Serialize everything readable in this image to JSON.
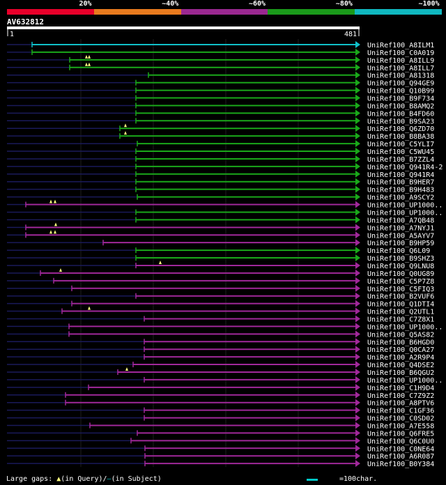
{
  "query_id": "AV632812",
  "scale": {
    "start": "1",
    "end": "481",
    "length": 481
  },
  "legend": [
    {
      "label": "20%",
      "color": "#e8002a"
    },
    {
      "label": "~40%",
      "color": "#e87a1e"
    },
    {
      "label": "~60%",
      "color": "#9a2890"
    },
    {
      "label": "~80%",
      "color": "#1a9a1a"
    },
    {
      "label": "~100%",
      "color": "#10b8c0"
    }
  ],
  "colors": {
    "cyan": "#10c0c8",
    "green": "#1aa81a",
    "purple": "#a0289a",
    "navy": "#1a1a5a",
    "grid": "#1e1e1e",
    "tri": "#ffff80"
  },
  "footer": {
    "gaps": "Large gaps:",
    "in_query": "(in Query)/",
    "dash": "—",
    "in_subject": "(in Subject)",
    "scale_note": "=100char."
  },
  "hits": [
    {
      "name": "UniRef100_A8ILM1",
      "s": 46,
      "c": "cyan",
      "tri": []
    },
    {
      "name": "UniRef100_C0A019",
      "s": 46,
      "c": "green",
      "tri": []
    },
    {
      "name": "UniRef100_A8ILL9",
      "s": 100,
      "c": "green",
      "tri": [
        124,
        128
      ]
    },
    {
      "name": "UniRef100_A8ILL7",
      "s": 100,
      "c": "green",
      "tri": [
        124,
        128
      ]
    },
    {
      "name": "UniRef100_A81318",
      "s": 213,
      "c": "green",
      "tri": []
    },
    {
      "name": "UniRef100_Q94GE9",
      "s": 195,
      "c": "green",
      "tri": []
    },
    {
      "name": "UniRef100_Q10B99",
      "s": 195,
      "c": "green",
      "tri": []
    },
    {
      "name": "UniRef100_B9F734",
      "s": 195,
      "c": "green",
      "tri": []
    },
    {
      "name": "UniRef100_B8AMQ2",
      "s": 195,
      "c": "green",
      "tri": []
    },
    {
      "name": "UniRef100_B4FD60",
      "s": 195,
      "c": "green",
      "tri": []
    },
    {
      "name": "UniRef100_B9SA23",
      "s": 195,
      "c": "green",
      "tri": []
    },
    {
      "name": "UniRef100_Q6ZD70",
      "s": 172,
      "c": "green",
      "tri": [
        180
      ]
    },
    {
      "name": "UniRef100_B8BA38",
      "s": 172,
      "c": "green",
      "tri": [
        180
      ]
    },
    {
      "name": "UniRef100_C5YLI7",
      "s": 197,
      "c": "green",
      "tri": []
    },
    {
      "name": "UniRef100_C5WU45",
      "s": 195,
      "c": "green",
      "tri": []
    },
    {
      "name": "UniRef100_B7ZZL4",
      "s": 195,
      "c": "green",
      "tri": []
    },
    {
      "name": "UniRef100_Q941R4-2",
      "s": 195,
      "c": "green",
      "tri": []
    },
    {
      "name": "UniRef100_Q941R4",
      "s": 195,
      "c": "green",
      "tri": []
    },
    {
      "name": "UniRef100_B9HER7",
      "s": 195,
      "c": "green",
      "tri": []
    },
    {
      "name": "UniRef100_B9H483",
      "s": 195,
      "c": "green",
      "tri": []
    },
    {
      "name": "UniRef100_A9SCY2",
      "s": 197,
      "c": "green",
      "tri": []
    },
    {
      "name": "UniRef100_UP1000..",
      "s": 37,
      "c": "purple",
      "tri": [
        73,
        79
      ]
    },
    {
      "name": "UniRef100_UP1000..",
      "s": 195,
      "c": "green",
      "tri": []
    },
    {
      "name": "UniRef100_A7QB48",
      "s": 195,
      "c": "green",
      "tri": []
    },
    {
      "name": "UniRef100_A7NYJ1",
      "s": 37,
      "c": "purple",
      "tri": [
        80
      ]
    },
    {
      "name": "UniRef100_A5AYV7",
      "s": 37,
      "c": "purple",
      "tri": [
        73,
        79
      ]
    },
    {
      "name": "UniRef100_B9HP59",
      "s": 148,
      "c": "purple",
      "tri": []
    },
    {
      "name": "UniRef100_Q6L09",
      "s": 195,
      "c": "green",
      "tri": []
    },
    {
      "name": "UniRef100_B9SHZ3",
      "s": 195,
      "c": "green",
      "tri": []
    },
    {
      "name": "UniRef100_Q9LNU8",
      "s": 195,
      "c": "purple",
      "tri": [
        230
      ]
    },
    {
      "name": "UniRef100_Q0UG89",
      "s": 58,
      "c": "purple",
      "tri": [
        87
      ]
    },
    {
      "name": "UniRef100_C5P7Z8",
      "s": 77,
      "c": "purple",
      "tri": []
    },
    {
      "name": "UniRef100_C5FIQ3",
      "s": 103,
      "c": "purple",
      "tri": []
    },
    {
      "name": "UniRef100_B2VUF6",
      "s": 195,
      "c": "purple",
      "tri": []
    },
    {
      "name": "UniRef100_Q1DTI4",
      "s": 103,
      "c": "purple",
      "tri": []
    },
    {
      "name": "UniRef100_Q2UTL1",
      "s": 89,
      "c": "purple",
      "tri": [
        128
      ]
    },
    {
      "name": "UniRef100_C7Z8X1",
      "s": 207,
      "c": "purple",
      "tri": []
    },
    {
      "name": "UniRef100_UP1000..",
      "s": 99,
      "c": "purple",
      "tri": []
    },
    {
      "name": "UniRef100_Q5AS82",
      "s": 99,
      "c": "purple",
      "tri": []
    },
    {
      "name": "UniRef100_B6HGD0",
      "s": 207,
      "c": "purple",
      "tri": []
    },
    {
      "name": "UniRef100_Q0CA27",
      "s": 207,
      "c": "purple",
      "tri": []
    },
    {
      "name": "UniRef100_A2R9P4",
      "s": 207,
      "c": "purple",
      "tri": []
    },
    {
      "name": "UniRef100_Q4DSE2",
      "s": 191,
      "c": "purple",
      "tri": []
    },
    {
      "name": "UniRef100_B6QGU2",
      "s": 169,
      "c": "purple",
      "tri": [
        182
      ]
    },
    {
      "name": "UniRef100_UP1000..",
      "s": 207,
      "c": "purple",
      "tri": []
    },
    {
      "name": "UniRef100_C1H9D4",
      "s": 127,
      "c": "purple",
      "tri": []
    },
    {
      "name": "UniRef100_C7Z9Z2",
      "s": 94,
      "c": "purple",
      "tri": []
    },
    {
      "name": "UniRef100_A8PTV6",
      "s": 94,
      "c": "purple",
      "tri": []
    },
    {
      "name": "UniRef100_C1GF36",
      "s": 207,
      "c": "purple",
      "tri": []
    },
    {
      "name": "UniRef100_C0SD02",
      "s": 207,
      "c": "purple",
      "tri": []
    },
    {
      "name": "UniRef100_A7E558",
      "s": 129,
      "c": "purple",
      "tri": []
    },
    {
      "name": "UniRef100_Q6FRE5",
      "s": 197,
      "c": "purple",
      "tri": []
    },
    {
      "name": "UniRef100_Q6C0U0",
      "s": 188,
      "c": "purple",
      "tri": []
    },
    {
      "name": "UniRef100_C0NE64",
      "s": 208,
      "c": "purple",
      "tri": []
    },
    {
      "name": "UniRef100_A6R087",
      "s": 208,
      "c": "purple",
      "tri": []
    },
    {
      "name": "UniRef100_B0Y384",
      "s": 208,
      "c": "purple",
      "tri": []
    }
  ]
}
